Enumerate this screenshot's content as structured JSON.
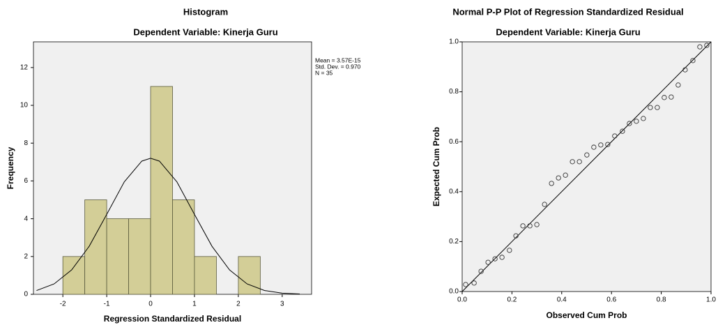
{
  "chart_data": [
    {
      "type": "histogram",
      "title": "Histogram",
      "subtitle": "Dependent Variable: Kinerja Guru",
      "xlabel": "Regression Standardized Residual",
      "ylabel": "Frequency",
      "bins": [
        -2,
        -1.5,
        -1,
        -0.5,
        0,
        0.5,
        1,
        1.5,
        2,
        2.5
      ],
      "values": [
        2,
        5,
        4,
        4,
        11,
        5,
        2,
        0,
        2
      ],
      "color": "#d3ce97",
      "edge_color": "#5a5a3c",
      "curve": {
        "x": [
          -2.6,
          -2.2,
          -1.8,
          -1.4,
          -1.0,
          -0.6,
          -0.2,
          0,
          0.2,
          0.6,
          1.0,
          1.4,
          1.8,
          2.2,
          2.6,
          3.0,
          3.4
        ],
        "values": [
          0.2,
          0.55,
          1.29,
          2.54,
          4.23,
          5.95,
          7.05,
          7.2,
          7.05,
          5.95,
          4.23,
          2.54,
          1.29,
          0.55,
          0.2,
          0.06,
          0.02
        ]
      },
      "annotations": [
        "Mean = 3.57E-15",
        "Std. Dev. = 0.970",
        "N = 35"
      ],
      "xlim": [
        -2.67,
        3.67
      ],
      "ylim": [
        0,
        13.36
      ],
      "xticks": [
        -2,
        -1,
        0,
        1,
        2,
        3
      ],
      "yticks": [
        0,
        2,
        4,
        6,
        8,
        10,
        12
      ],
      "background": "#f0f0f0"
    },
    {
      "type": "scatter",
      "title": "Normal P-P Plot of Regression Standardized Residual",
      "subtitle": "Dependent Variable: Kinerja Guru",
      "xlabel": "Observed Cum Prob",
      "ylabel": "Expected Cum Prob",
      "x": [
        0.014,
        0.048,
        0.076,
        0.104,
        0.132,
        0.16,
        0.19,
        0.216,
        0.244,
        0.272,
        0.3,
        0.331,
        0.359,
        0.387,
        0.415,
        0.443,
        0.471,
        0.501,
        0.529,
        0.557,
        0.585,
        0.613,
        0.644,
        0.672,
        0.7,
        0.728,
        0.756,
        0.784,
        0.812,
        0.84,
        0.868,
        0.896,
        0.927,
        0.955,
        0.983
      ],
      "values": [
        0.028,
        0.034,
        0.081,
        0.117,
        0.131,
        0.137,
        0.165,
        0.223,
        0.263,
        0.263,
        0.268,
        0.349,
        0.433,
        0.455,
        0.466,
        0.52,
        0.52,
        0.547,
        0.578,
        0.587,
        0.589,
        0.623,
        0.642,
        0.673,
        0.682,
        0.693,
        0.737,
        0.737,
        0.777,
        0.779,
        0.827,
        0.888,
        0.925,
        0.98,
        0.986
      ],
      "diagonal": true,
      "color": "#333333",
      "xlim": [
        0,
        1
      ],
      "ylim": [
        0,
        1
      ],
      "xticks": [
        {
          "value": 0,
          "label": "0.0"
        },
        0.2,
        0.4,
        0.6,
        0.8,
        {
          "value": 1,
          "label": "1.0"
        }
      ],
      "yticks": [
        {
          "value": 0,
          "label": "0.0"
        },
        0.2,
        0.4,
        0.6,
        0.8,
        {
          "value": 1,
          "label": "1.0"
        }
      ],
      "background": "#f0f0f0"
    }
  ]
}
